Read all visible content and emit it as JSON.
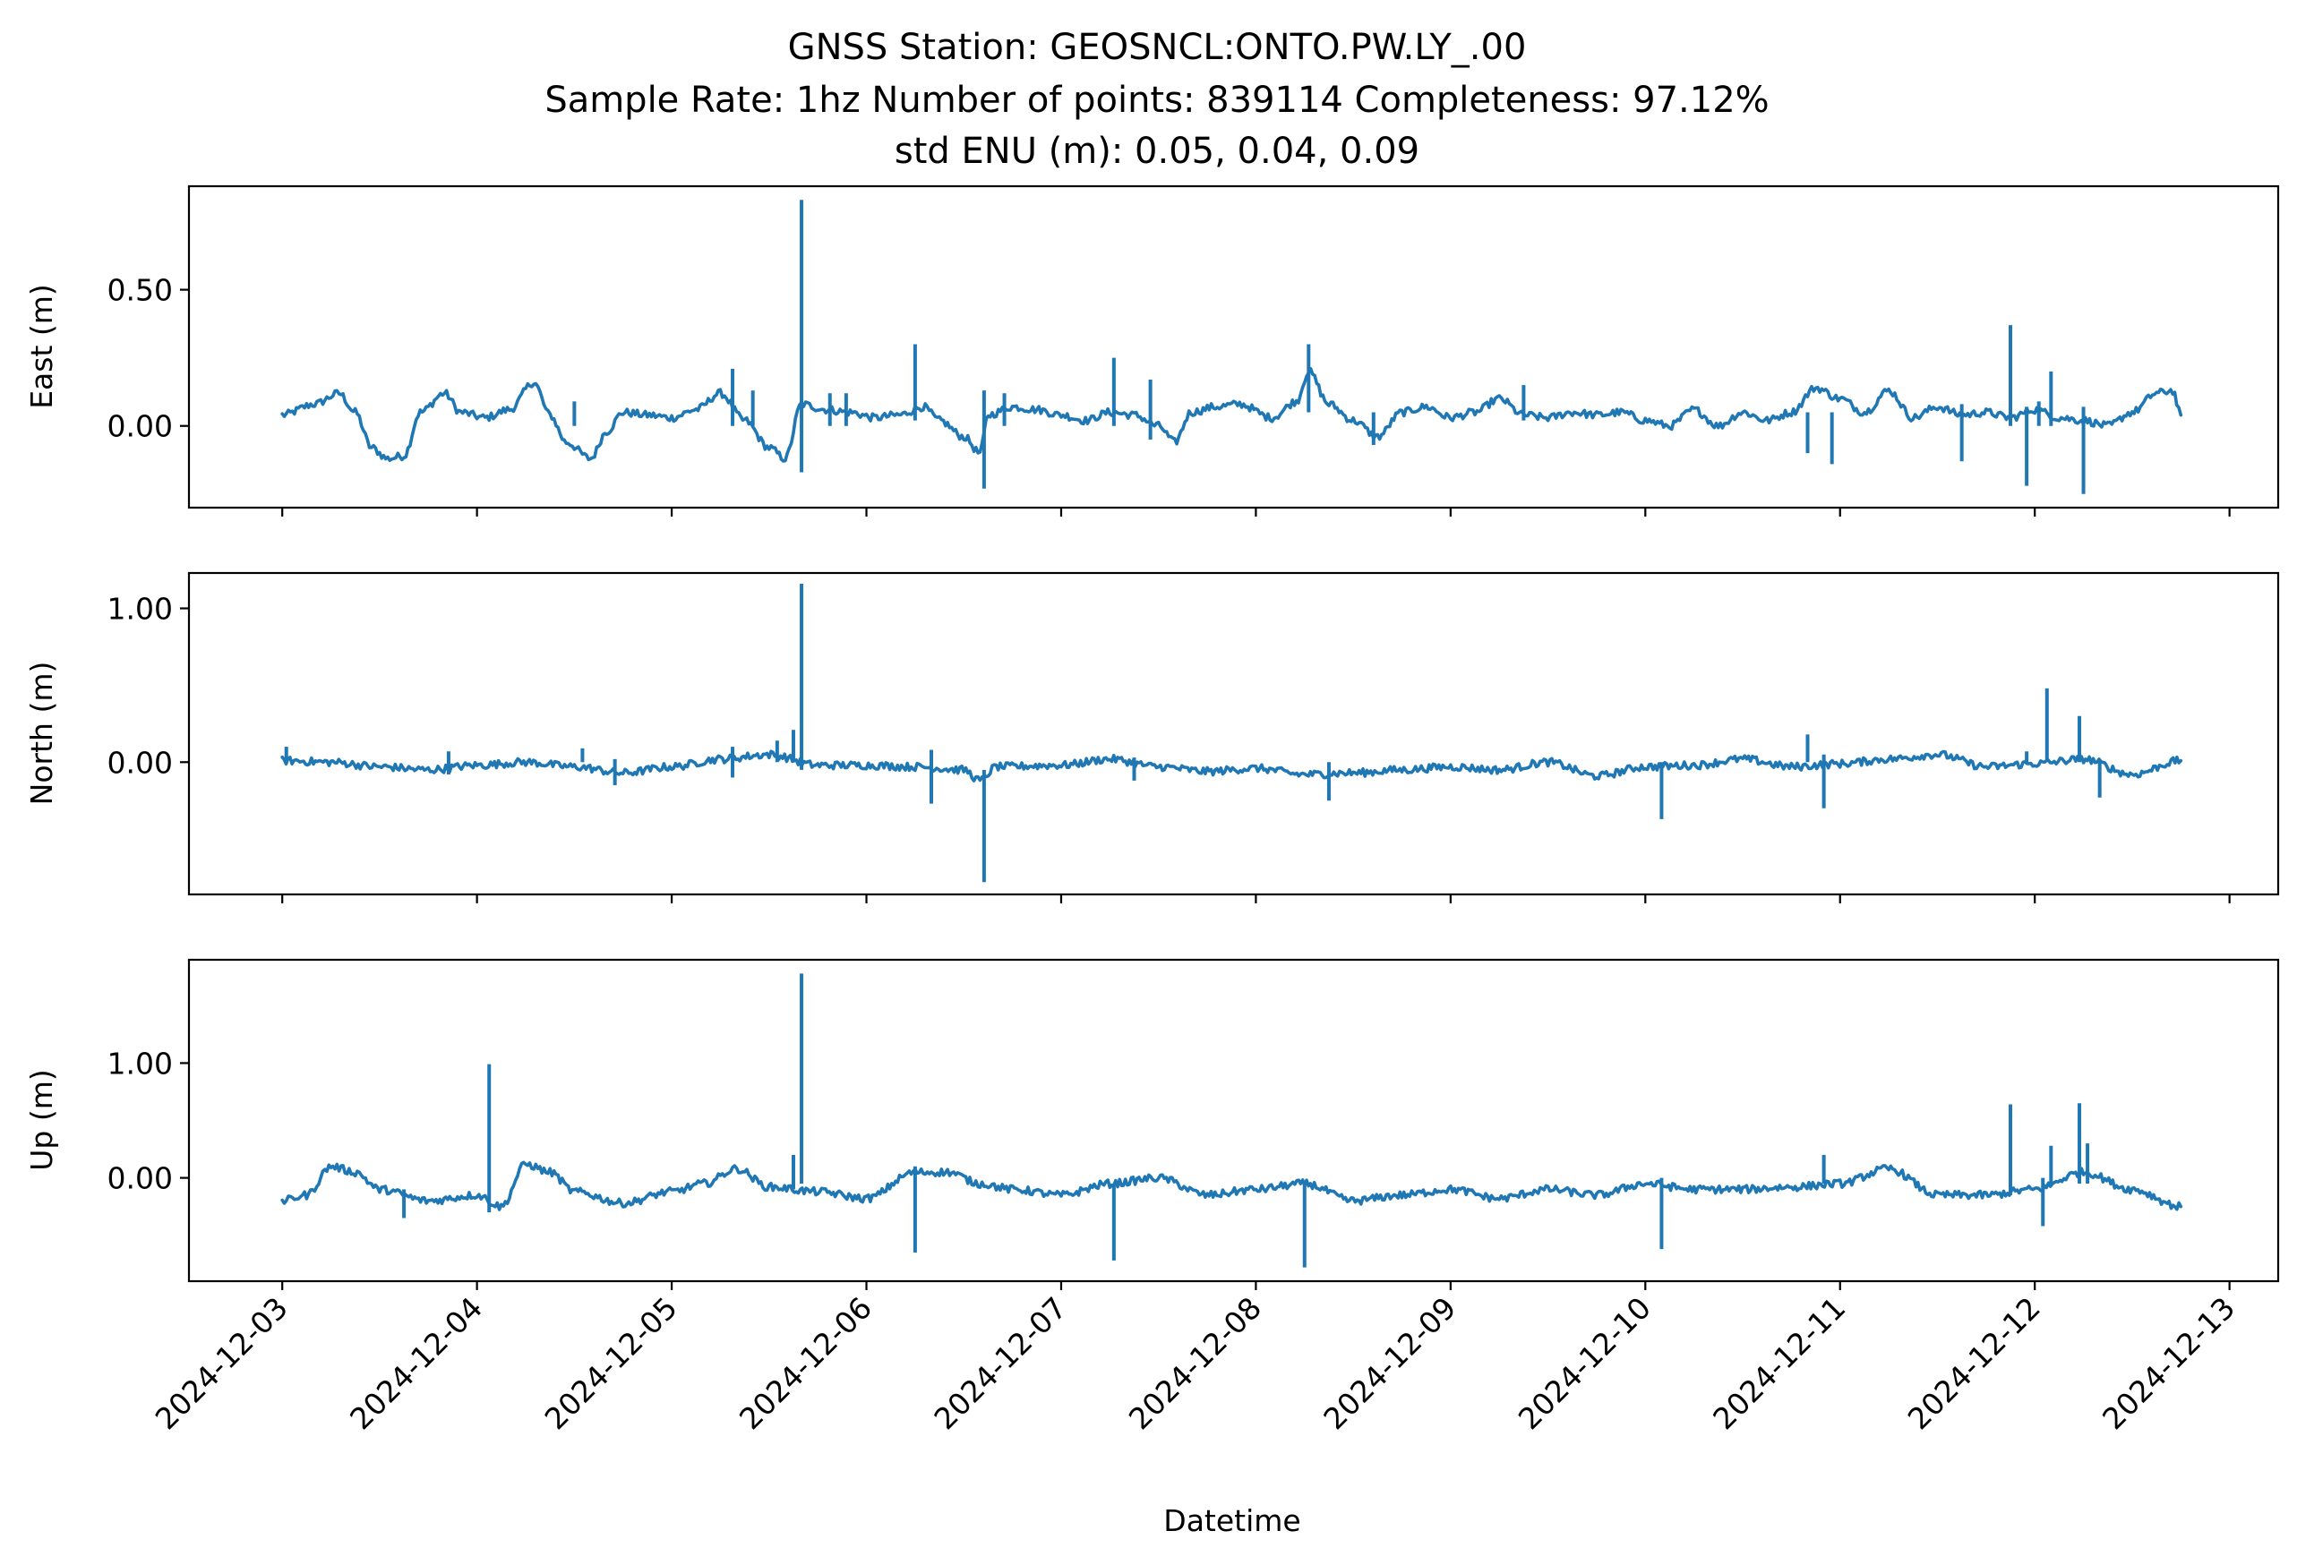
{
  "figure": {
    "title_lines": [
      "GNSS Station: GEOSNCL:ONTO.PW.LY_.00",
      "Sample Rate: 1hz   Number of points: 839114    Completeness:  97.12%",
      "std ENU (m):  0.05, 0.04, 0.09"
    ]
  },
  "chart_data": {
    "type": "line",
    "title": "GNSS Station: GEOSNCL:ONTO.PW.LY_.00\nSample Rate: 1hz   Number of points: 839114    Completeness:  97.12%\nstd ENU (m):  0.05, 0.04, 0.09",
    "xlabel": "Datetime",
    "x_tick_labels": [
      "2024-12-03",
      "2024-12-04",
      "2024-12-05",
      "2024-12-06",
      "2024-12-07",
      "2024-12-08",
      "2024-12-09",
      "2024-12-10",
      "2024-12-11",
      "2024-12-12",
      "2024-12-13"
    ],
    "xlim": [
      "2024-12-02T12:30",
      "2024-12-13T06:00"
    ],
    "data_range": [
      "2024-12-03T00:00",
      "2024-12-12T18:00"
    ],
    "line_color": "#1f77b4",
    "grid": false,
    "legend": "none",
    "shared_x": true,
    "panels": [
      {
        "name": "east",
        "ylabel": "East (m)",
        "ylim": [
          -0.3,
          0.88
        ],
        "yticks": [
          0.0,
          0.5
        ],
        "ytick_labels": [
          "0.00",
          "0.50"
        ],
        "points": [
          [
            "2024-12-03T00:00",
            0.04
          ],
          [
            "2024-12-03T04:00",
            0.08
          ],
          [
            "2024-12-03T07:00",
            0.12
          ],
          [
            "2024-12-03T09:00",
            0.05
          ],
          [
            "2024-12-03T11:00",
            -0.08
          ],
          [
            "2024-12-03T13:00",
            -0.12
          ],
          [
            "2024-12-03T15:00",
            -0.11
          ],
          [
            "2024-12-03T17:00",
            0.05
          ],
          [
            "2024-12-03T20:00",
            0.12
          ],
          [
            "2024-12-03T22:00",
            0.05
          ],
          [
            "2024-12-04T01:00",
            0.03
          ],
          [
            "2024-12-04T04:00",
            0.06
          ],
          [
            "2024-12-04T07:00",
            0.16
          ],
          [
            "2024-12-04T09:00",
            0.04
          ],
          [
            "2024-12-04T11:00",
            -0.06
          ],
          [
            "2024-12-04T14:00",
            -0.12
          ],
          [
            "2024-12-04T16:00",
            -0.02
          ],
          [
            "2024-12-04T18:00",
            0.05
          ],
          [
            "2024-12-04T21:00",
            0.04
          ],
          [
            "2024-12-05T00:00",
            0.03
          ],
          [
            "2024-12-05T03:00",
            0.06
          ],
          [
            "2024-12-05T06:00",
            0.12
          ],
          [
            "2024-12-05T09:00",
            0.02
          ],
          [
            "2024-12-05T12:00",
            -0.08
          ],
          [
            "2024-12-05T14:00",
            -0.12
          ],
          [
            "2024-12-05T16:00",
            0.08
          ],
          [
            "2024-12-05T19:00",
            0.06
          ],
          [
            "2024-12-05T22:00",
            0.05
          ],
          [
            "2024-12-06T01:00",
            0.03
          ],
          [
            "2024-12-06T04:00",
            0.04
          ],
          [
            "2024-12-06T07:00",
            0.07
          ],
          [
            "2024-12-06T09:00",
            0.02
          ],
          [
            "2024-12-06T12:00",
            -0.04
          ],
          [
            "2024-12-06T14:00",
            -0.1
          ],
          [
            "2024-12-06T15:00",
            0.04
          ],
          [
            "2024-12-06T18:00",
            0.07
          ],
          [
            "2024-12-06T21:00",
            0.06
          ],
          [
            "2024-12-07T00:00",
            0.04
          ],
          [
            "2024-12-07T03:00",
            0.02
          ],
          [
            "2024-12-07T06:00",
            0.05
          ],
          [
            "2024-12-07T09:00",
            0.04
          ],
          [
            "2024-12-07T12:00",
            0.0
          ],
          [
            "2024-12-07T14:00",
            -0.06
          ],
          [
            "2024-12-07T16:00",
            0.05
          ],
          [
            "2024-12-07T19:00",
            0.07
          ],
          [
            "2024-12-07T22:00",
            0.08
          ],
          [
            "2024-12-08T02:00",
            0.03
          ],
          [
            "2024-12-08T05:00",
            0.09
          ],
          [
            "2024-12-08T06:30",
            0.2
          ],
          [
            "2024-12-08T09:00",
            0.08
          ],
          [
            "2024-12-08T12:00",
            0.02
          ],
          [
            "2024-12-08T15:00",
            -0.04
          ],
          [
            "2024-12-08T18:00",
            0.05
          ],
          [
            "2024-12-08T21:00",
            0.07
          ],
          [
            "2024-12-09T00:00",
            0.03
          ],
          [
            "2024-12-09T03:00",
            0.05
          ],
          [
            "2024-12-09T06:00",
            0.1
          ],
          [
            "2024-12-09T09:00",
            0.04
          ],
          [
            "2024-12-09T12:00",
            0.03
          ],
          [
            "2024-12-09T15:00",
            0.05
          ],
          [
            "2024-12-09T18:00",
            0.04
          ],
          [
            "2024-12-09T21:00",
            0.05
          ],
          [
            "2024-12-10T00:00",
            0.02
          ],
          [
            "2024-12-10T03:00",
            0.0
          ],
          [
            "2024-12-10T06:00",
            0.06
          ],
          [
            "2024-12-10T09:00",
            0.0
          ],
          [
            "2024-12-10T12:00",
            0.05
          ],
          [
            "2024-12-10T15:00",
            0.02
          ],
          [
            "2024-12-10T18:00",
            0.05
          ],
          [
            "2024-12-10T21:00",
            0.14
          ],
          [
            "2024-12-11T00:00",
            0.1
          ],
          [
            "2024-12-11T03:00",
            0.05
          ],
          [
            "2024-12-11T06:00",
            0.13
          ],
          [
            "2024-12-11T09:00",
            0.03
          ],
          [
            "2024-12-11T12:00",
            0.07
          ],
          [
            "2024-12-11T15:00",
            0.04
          ],
          [
            "2024-12-11T18:00",
            0.05
          ],
          [
            "2024-12-11T21:00",
            0.03
          ],
          [
            "2024-12-12T00:00",
            0.06
          ],
          [
            "2024-12-12T03:00",
            0.03
          ],
          [
            "2024-12-12T06:00",
            0.02
          ],
          [
            "2024-12-12T09:00",
            0.0
          ],
          [
            "2024-12-12T12:00",
            0.05
          ],
          [
            "2024-12-12T15:00",
            0.12
          ],
          [
            "2024-12-12T17:00",
            0.13
          ],
          [
            "2024-12-12T18:00",
            0.04
          ]
        ],
        "spikes": [
          [
            "2024-12-04T12:00",
            0.0,
            0.09
          ],
          [
            "2024-12-05T07:30",
            0.0,
            0.21
          ],
          [
            "2024-12-05T10:00",
            0.0,
            0.13
          ],
          [
            "2024-12-05T16:00",
            -0.17,
            0.83
          ],
          [
            "2024-12-05T19:30",
            0.0,
            0.12
          ],
          [
            "2024-12-05T21:30",
            0.0,
            0.12
          ],
          [
            "2024-12-06T06:00",
            0.02,
            0.3
          ],
          [
            "2024-12-06T14:30",
            -0.23,
            0.13
          ],
          [
            "2024-12-06T17:00",
            0.0,
            0.12
          ],
          [
            "2024-12-07T06:30",
            0.0,
            0.25
          ],
          [
            "2024-12-07T11:00",
            -0.05,
            0.17
          ],
          [
            "2024-12-08T06:30",
            0.05,
            0.3
          ],
          [
            "2024-12-08T14:30",
            -0.07,
            0.05
          ],
          [
            "2024-12-09T09:00",
            0.02,
            0.15
          ],
          [
            "2024-12-10T20:00",
            -0.1,
            0.05
          ],
          [
            "2024-12-10T23:00",
            -0.14,
            0.05
          ],
          [
            "2024-12-11T15:00",
            -0.13,
            0.08
          ],
          [
            "2024-12-11T21:00",
            0.0,
            0.37
          ],
          [
            "2024-12-11T23:00",
            -0.22,
            0.07
          ],
          [
            "2024-12-12T00:30",
            0.0,
            0.09
          ],
          [
            "2024-12-12T02:00",
            0.0,
            0.2
          ],
          [
            "2024-12-12T06:00",
            -0.25,
            0.07
          ]
        ]
      },
      {
        "name": "north",
        "ylabel": "North (m)",
        "ylim": [
          -0.86,
          1.23
        ],
        "yticks": [
          0.0,
          1.0
        ],
        "ytick_labels": [
          "0.00",
          "1.00"
        ],
        "points": [
          [
            "2024-12-03T00:00",
            0.01
          ],
          [
            "2024-12-03T06:00",
            0.0
          ],
          [
            "2024-12-03T12:00",
            -0.03
          ],
          [
            "2024-12-03T18:00",
            -0.05
          ],
          [
            "2024-12-04T00:00",
            -0.02
          ],
          [
            "2024-12-04T06:00",
            0.0
          ],
          [
            "2024-12-04T12:00",
            -0.03
          ],
          [
            "2024-12-04T18:00",
            -0.07
          ],
          [
            "2024-12-05T00:00",
            -0.03
          ],
          [
            "2024-12-05T06:00",
            0.02
          ],
          [
            "2024-12-05T12:00",
            0.05
          ],
          [
            "2024-12-05T18:00",
            -0.02
          ],
          [
            "2024-12-06T00:00",
            -0.02
          ],
          [
            "2024-12-06T06:00",
            -0.03
          ],
          [
            "2024-12-06T12:00",
            -0.05
          ],
          [
            "2024-12-06T14:00",
            -0.12
          ],
          [
            "2024-12-06T16:00",
            -0.03
          ],
          [
            "2024-12-07T00:00",
            -0.02
          ],
          [
            "2024-12-07T06:00",
            0.02
          ],
          [
            "2024-12-07T12:00",
            -0.03
          ],
          [
            "2024-12-07T18:00",
            -0.06
          ],
          [
            "2024-12-08T00:00",
            -0.04
          ],
          [
            "2024-12-08T06:00",
            -0.08
          ],
          [
            "2024-12-08T12:00",
            -0.07
          ],
          [
            "2024-12-08T18:00",
            -0.05
          ],
          [
            "2024-12-09T00:00",
            -0.03
          ],
          [
            "2024-12-09T06:00",
            -0.05
          ],
          [
            "2024-12-09T12:00",
            0.0
          ],
          [
            "2024-12-09T18:00",
            -0.09
          ],
          [
            "2024-12-10T00:00",
            -0.03
          ],
          [
            "2024-12-10T06:00",
            -0.02
          ],
          [
            "2024-12-10T12:00",
            0.02
          ],
          [
            "2024-12-10T18:00",
            -0.03
          ],
          [
            "2024-12-11T00:00",
            -0.01
          ],
          [
            "2024-12-11T06:00",
            0.02
          ],
          [
            "2024-12-11T12:00",
            0.05
          ],
          [
            "2024-12-11T18:00",
            -0.03
          ],
          [
            "2024-12-12T00:00",
            -0.01
          ],
          [
            "2024-12-12T06:00",
            0.02
          ],
          [
            "2024-12-12T12:00",
            -0.08
          ],
          [
            "2024-12-12T18:00",
            0.01
          ]
        ],
        "spikes": [
          [
            "2024-12-03T00:30",
            0.0,
            0.1
          ],
          [
            "2024-12-03T20:30",
            -0.08,
            0.07
          ],
          [
            "2024-12-04T13:00",
            0.0,
            0.09
          ],
          [
            "2024-12-04T17:00",
            -0.15,
            0.02
          ],
          [
            "2024-12-05T07:30",
            -0.1,
            0.1
          ],
          [
            "2024-12-05T13:00",
            0.0,
            0.14
          ],
          [
            "2024-12-05T15:00",
            0.0,
            0.21
          ],
          [
            "2024-12-05T16:00",
            -0.05,
            1.16
          ],
          [
            "2024-12-06T08:00",
            -0.27,
            0.08
          ],
          [
            "2024-12-06T14:30",
            -0.78,
            -0.05
          ],
          [
            "2024-12-07T09:00",
            -0.12,
            0.03
          ],
          [
            "2024-12-08T09:00",
            -0.25,
            0.0
          ],
          [
            "2024-12-10T02:00",
            -0.37,
            0.0
          ],
          [
            "2024-12-10T20:00",
            0.0,
            0.18
          ],
          [
            "2024-12-10T22:00",
            -0.3,
            0.05
          ],
          [
            "2024-12-11T23:00",
            0.0,
            0.07
          ],
          [
            "2024-12-12T01:30",
            0.0,
            0.48
          ],
          [
            "2024-12-12T05:30",
            0.0,
            0.3
          ],
          [
            "2024-12-12T08:00",
            -0.23,
            0.0
          ]
        ]
      },
      {
        "name": "up",
        "ylabel": "Up (m)",
        "ylim": [
          -0.9,
          1.9
        ],
        "yticks": [
          0.0,
          1.0
        ],
        "ytick_labels": [
          "0.00",
          "1.00"
        ],
        "points": [
          [
            "2024-12-03T00:00",
            -0.2
          ],
          [
            "2024-12-03T03:00",
            -0.15
          ],
          [
            "2024-12-03T06:00",
            0.1
          ],
          [
            "2024-12-03T09:00",
            0.05
          ],
          [
            "2024-12-03T12:00",
            -0.1
          ],
          [
            "2024-12-03T18:00",
            -0.2
          ],
          [
            "2024-12-04T00:00",
            -0.15
          ],
          [
            "2024-12-04T03:00",
            -0.25
          ],
          [
            "2024-12-04T06:00",
            0.12
          ],
          [
            "2024-12-04T09:00",
            0.05
          ],
          [
            "2024-12-04T12:00",
            -0.12
          ],
          [
            "2024-12-04T18:00",
            -0.22
          ],
          [
            "2024-12-05T00:00",
            -0.12
          ],
          [
            "2024-12-05T04:00",
            -0.05
          ],
          [
            "2024-12-05T08:00",
            0.08
          ],
          [
            "2024-12-05T12:00",
            -0.08
          ],
          [
            "2024-12-05T18:00",
            -0.12
          ],
          [
            "2024-12-06T00:00",
            -0.18
          ],
          [
            "2024-12-06T06:00",
            0.05
          ],
          [
            "2024-12-06T10:00",
            0.05
          ],
          [
            "2024-12-06T14:00",
            -0.05
          ],
          [
            "2024-12-06T18:00",
            -0.1
          ],
          [
            "2024-12-07T00:00",
            -0.15
          ],
          [
            "2024-12-07T06:00",
            -0.05
          ],
          [
            "2024-12-07T12:00",
            0.0
          ],
          [
            "2024-12-07T18:00",
            -0.15
          ],
          [
            "2024-12-08T00:00",
            -0.1
          ],
          [
            "2024-12-08T06:00",
            -0.05
          ],
          [
            "2024-12-08T12:00",
            -0.2
          ],
          [
            "2024-12-08T18:00",
            -0.15
          ],
          [
            "2024-12-09T00:00",
            -0.1
          ],
          [
            "2024-12-09T06:00",
            -0.18
          ],
          [
            "2024-12-09T12:00",
            -0.1
          ],
          [
            "2024-12-09T18:00",
            -0.15
          ],
          [
            "2024-12-10T00:00",
            -0.05
          ],
          [
            "2024-12-10T06:00",
            -0.1
          ],
          [
            "2024-12-10T12:00",
            -0.1
          ],
          [
            "2024-12-10T18:00",
            -0.08
          ],
          [
            "2024-12-11T00:00",
            -0.05
          ],
          [
            "2024-12-11T06:00",
            0.08
          ],
          [
            "2024-12-11T12:00",
            -0.15
          ],
          [
            "2024-12-11T18:00",
            -0.15
          ],
          [
            "2024-12-12T00:00",
            -0.1
          ],
          [
            "2024-12-12T06:00",
            0.05
          ],
          [
            "2024-12-12T12:00",
            -0.1
          ],
          [
            "2024-12-12T18:00",
            -0.25
          ]
        ],
        "spikes": [
          [
            "2024-12-03T15:00",
            -0.35,
            -0.1
          ],
          [
            "2024-12-04T01:30",
            -0.3,
            0.99
          ],
          [
            "2024-12-05T15:00",
            -0.1,
            0.2
          ],
          [
            "2024-12-05T16:00",
            -0.05,
            1.78
          ],
          [
            "2024-12-06T06:00",
            -0.65,
            0.1
          ],
          [
            "2024-12-07T06:30",
            -0.72,
            -0.05
          ],
          [
            "2024-12-08T06:00",
            -0.78,
            -0.05
          ],
          [
            "2024-12-10T02:00",
            -0.62,
            0.0
          ],
          [
            "2024-12-10T22:00",
            -0.05,
            0.2
          ],
          [
            "2024-12-11T21:00",
            -0.15,
            0.64
          ],
          [
            "2024-12-12T02:00",
            -0.05,
            0.28
          ],
          [
            "2024-12-12T01:00",
            -0.42,
            0.0
          ],
          [
            "2024-12-12T05:30",
            -0.05,
            0.65
          ],
          [
            "2024-12-12T06:30",
            -0.05,
            0.3
          ]
        ]
      }
    ]
  }
}
